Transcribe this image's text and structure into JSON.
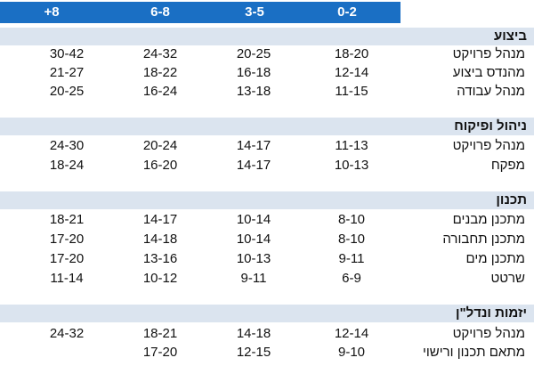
{
  "columns": [
    "+8",
    "6-8",
    "3-5",
    "0-2"
  ],
  "colors": {
    "header": "#1a6fc4",
    "section": "#dbe4ef"
  },
  "sections": [
    {
      "title": "ביצוע",
      "rows": [
        {
          "role": "מנהל פרויקט",
          "values": [
            "30-42",
            "24-32",
            "20-25",
            "18-20"
          ]
        },
        {
          "role": "מהנדס ביצוע",
          "values": [
            "21-27",
            "18-22",
            "16-18",
            "12-14"
          ]
        },
        {
          "role": "מנהל עבודה",
          "values": [
            "20-25",
            "16-24",
            "13-18",
            "11-15"
          ]
        }
      ]
    },
    {
      "title": "ניהול ופיקוח",
      "rows": [
        {
          "role": "מנהל פרויקט",
          "values": [
            "24-30",
            "20-24",
            "14-17",
            "11-13"
          ]
        },
        {
          "role": "מפקח",
          "values": [
            "18-24",
            "16-20",
            "14-17",
            "10-13"
          ]
        }
      ]
    },
    {
      "title": "תכנון",
      "rows": [
        {
          "role": "מתכנן מבנים",
          "values": [
            "18-21",
            "14-17",
            "10-14",
            "8-10"
          ]
        },
        {
          "role": "מתכנן תחבורה",
          "values": [
            "17-20",
            "14-18",
            "10-14",
            "8-10"
          ]
        },
        {
          "role": "מתכנן מים",
          "values": [
            "17-20",
            "13-16",
            "10-13",
            "9-11"
          ]
        },
        {
          "role": "שרטט",
          "values": [
            "11-14",
            "10-12",
            "9-11",
            "6-9"
          ]
        }
      ]
    },
    {
      "title": "יזמות ונדל\"ן",
      "rows": [
        {
          "role": "מנהל פרויקט",
          "values": [
            "24-32",
            "18-21",
            "14-18",
            "12-14"
          ]
        },
        {
          "role": "מתאם תכנון ורישוי",
          "values": [
            "",
            "17-20",
            "12-15",
            "9-10"
          ]
        }
      ]
    }
  ]
}
